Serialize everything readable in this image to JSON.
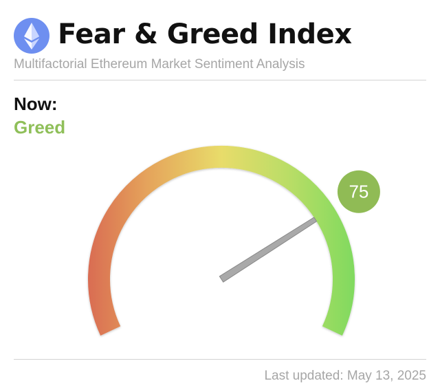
{
  "header": {
    "title": "Fear & Greed Index",
    "logo_icon": "ethereum-logo-icon"
  },
  "subtitle": "Multifactorial Ethereum Market Sentiment Analysis",
  "now": {
    "label": "Now:",
    "sentiment": "Greed"
  },
  "gauge": {
    "value": 75,
    "min": 0,
    "max": 100,
    "value_label": "75"
  },
  "footer": {
    "last_updated": "Last updated: May 13, 2025"
  },
  "colors": {
    "title": "#111111",
    "muted_text": "#a6a6a6",
    "divider": "#d2d2d2",
    "sentiment": "#8fbf59",
    "score_badge": "#90bb55",
    "needle": "#a9a9a9",
    "gauge_fear": "#d96c52",
    "gauge_neutral": "#e8dc6a",
    "gauge_greed": "#80da5f",
    "eth_logo_bg": "#6e8ff0"
  }
}
